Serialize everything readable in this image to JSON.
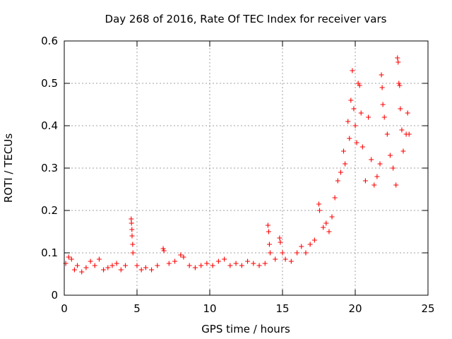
{
  "chart_data": {
    "type": "scatter",
    "title": "Day 268 of 2016, Rate Of TEC Index for receiver vars",
    "xlabel": "GPS time / hours",
    "ylabel": "ROTI / TECUs",
    "xlim": [
      0,
      25
    ],
    "ylim": [
      0,
      0.6
    ],
    "xticks": [
      0,
      5,
      10,
      15,
      20,
      25
    ],
    "yticks": [
      0,
      0.1,
      0.2,
      0.3,
      0.4,
      0.5,
      0.6
    ],
    "xtick_labels": [
      "0",
      "5",
      "10",
      "15",
      "20",
      "25"
    ],
    "ytick_labels": [
      "0",
      "0.1",
      "0.2",
      "0.3",
      "0.4",
      "0.5",
      "0.6"
    ],
    "grid": true,
    "marker": "+",
    "color": "#ff0000",
    "series": [
      {
        "name": "ROTI",
        "points": [
          [
            0.1,
            0.075
          ],
          [
            0.3,
            0.09
          ],
          [
            0.5,
            0.085
          ],
          [
            0.7,
            0.06
          ],
          [
            0.9,
            0.07
          ],
          [
            1.2,
            0.055
          ],
          [
            1.5,
            0.065
          ],
          [
            1.8,
            0.08
          ],
          [
            2.1,
            0.07
          ],
          [
            2.4,
            0.085
          ],
          [
            2.7,
            0.06
          ],
          [
            3.0,
            0.065
          ],
          [
            3.3,
            0.07
          ],
          [
            3.6,
            0.075
          ],
          [
            3.9,
            0.06
          ],
          [
            4.2,
            0.07
          ],
          [
            4.6,
            0.18
          ],
          [
            4.62,
            0.17
          ],
          [
            4.65,
            0.155
          ],
          [
            4.66,
            0.14
          ],
          [
            4.7,
            0.12
          ],
          [
            4.72,
            0.1
          ],
          [
            5.0,
            0.07
          ],
          [
            5.3,
            0.06
          ],
          [
            5.6,
            0.065
          ],
          [
            6.0,
            0.06
          ],
          [
            6.4,
            0.07
          ],
          [
            6.8,
            0.11
          ],
          [
            6.85,
            0.105
          ],
          [
            7.2,
            0.075
          ],
          [
            7.6,
            0.08
          ],
          [
            8.0,
            0.095
          ],
          [
            8.2,
            0.09
          ],
          [
            8.6,
            0.07
          ],
          [
            9.0,
            0.065
          ],
          [
            9.4,
            0.07
          ],
          [
            9.8,
            0.075
          ],
          [
            10.2,
            0.07
          ],
          [
            10.6,
            0.08
          ],
          [
            11.0,
            0.085
          ],
          [
            11.4,
            0.07
          ],
          [
            11.8,
            0.075
          ],
          [
            12.2,
            0.07
          ],
          [
            12.6,
            0.08
          ],
          [
            13.0,
            0.075
          ],
          [
            13.4,
            0.07
          ],
          [
            13.8,
            0.075
          ],
          [
            14.0,
            0.165
          ],
          [
            14.05,
            0.15
          ],
          [
            14.1,
            0.12
          ],
          [
            14.15,
            0.1
          ],
          [
            14.5,
            0.085
          ],
          [
            14.8,
            0.135
          ],
          [
            14.85,
            0.125
          ],
          [
            15.0,
            0.1
          ],
          [
            15.2,
            0.085
          ],
          [
            15.6,
            0.08
          ],
          [
            16.0,
            0.1
          ],
          [
            16.3,
            0.115
          ],
          [
            16.6,
            0.1
          ],
          [
            16.9,
            0.12
          ],
          [
            17.2,
            0.13
          ],
          [
            17.5,
            0.215
          ],
          [
            17.55,
            0.2
          ],
          [
            17.8,
            0.16
          ],
          [
            18.0,
            0.17
          ],
          [
            18.2,
            0.15
          ],
          [
            18.4,
            0.185
          ],
          [
            18.6,
            0.23
          ],
          [
            18.8,
            0.27
          ],
          [
            19.0,
            0.29
          ],
          [
            19.2,
            0.34
          ],
          [
            19.3,
            0.31
          ],
          [
            19.5,
            0.41
          ],
          [
            19.6,
            0.37
          ],
          [
            19.7,
            0.46
          ],
          [
            19.8,
            0.53
          ],
          [
            19.9,
            0.44
          ],
          [
            20.0,
            0.4
          ],
          [
            20.1,
            0.36
          ],
          [
            20.2,
            0.5
          ],
          [
            20.3,
            0.495
          ],
          [
            20.4,
            0.43
          ],
          [
            20.5,
            0.35
          ],
          [
            20.7,
            0.27
          ],
          [
            20.9,
            0.42
          ],
          [
            21.1,
            0.32
          ],
          [
            21.3,
            0.26
          ],
          [
            21.5,
            0.28
          ],
          [
            21.7,
            0.31
          ],
          [
            21.8,
            0.52
          ],
          [
            21.85,
            0.49
          ],
          [
            21.9,
            0.45
          ],
          [
            22.0,
            0.42
          ],
          [
            22.2,
            0.38
          ],
          [
            22.4,
            0.33
          ],
          [
            22.6,
            0.3
          ],
          [
            22.8,
            0.26
          ],
          [
            22.9,
            0.56
          ],
          [
            22.95,
            0.55
          ],
          [
            23.0,
            0.5
          ],
          [
            23.05,
            0.495
          ],
          [
            23.1,
            0.44
          ],
          [
            23.2,
            0.39
          ],
          [
            23.3,
            0.34
          ],
          [
            23.5,
            0.38
          ],
          [
            23.6,
            0.43
          ],
          [
            23.7,
            0.38
          ]
        ]
      }
    ]
  }
}
